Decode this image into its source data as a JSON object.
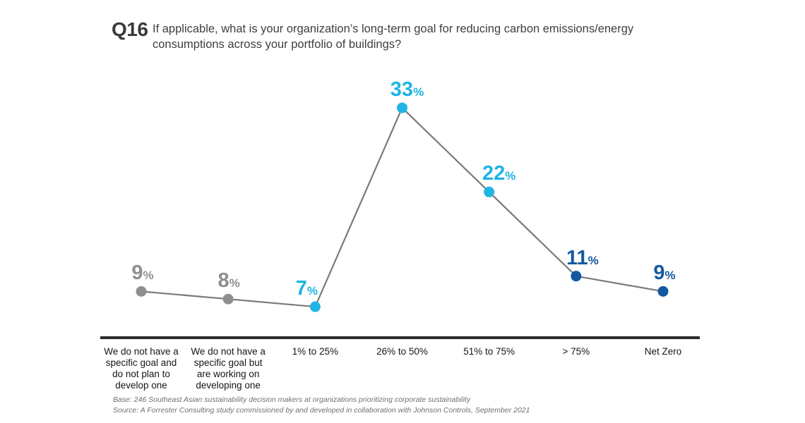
{
  "header": {
    "question_number": "Q16",
    "question_text": "If applicable, what is your organization’s long-term goal for reducing carbon emissions/energy consumptions across your portfolio of buildings?"
  },
  "chart_data": {
    "type": "line",
    "title": "",
    "xlabel": "",
    "ylabel": "",
    "categories": [
      "We do not have a specific goal and do not plan to develop one",
      "We do not have a specific goal but are working on developing one",
      "1% to 25%",
      "26% to 50%",
      "51% to 75%",
      "> 75%",
      "Net Zero"
    ],
    "values": [
      9,
      8,
      7,
      33,
      22,
      11,
      9
    ],
    "unit": "%",
    "ylim": [
      0,
      35
    ],
    "grid": false,
    "legend": false,
    "line_color": "#7a7a7a",
    "axis_color": "#2a2a2a",
    "point_colors": [
      "#8f8f8f",
      "#8f8f8f",
      "#1fb4e4",
      "#1fb4e4",
      "#1fb4e4",
      "#1458a0",
      "#1458a0"
    ]
  },
  "footer": {
    "base": "Base: 246 Southeast Asian sustainability decision makers at organizations prioritizing corporate sustainability",
    "source": "Source: A Forrester Consulting study commissioned by and developed in collaboration with Johnson Controls, September 2021"
  }
}
